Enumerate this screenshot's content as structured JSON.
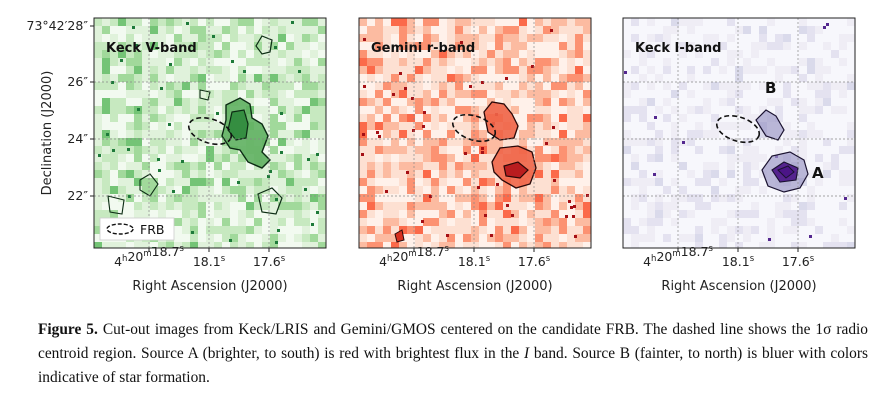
{
  "panels": [
    {
      "title": "Keck V-band",
      "colormap": "greens",
      "base_color": "#e6f4e3",
      "contour_fill": "#5fb061",
      "contour_fill_dark": "#2f8a3c",
      "show_frb_legend": true,
      "marker_labels": []
    },
    {
      "title": "Gemini r-band",
      "colormap": "reds",
      "base_color": "#fde6dd",
      "contour_fill": "#ef6548",
      "contour_fill_dark": "#b3141a",
      "show_frb_legend": false,
      "marker_labels": []
    },
    {
      "title": "Keck I-band",
      "colormap": "purples",
      "base_color": "#f4f4fa",
      "contour_fill": "#9e9ac8",
      "contour_fill_dark": "#4a1486",
      "show_frb_legend": false,
      "marker_labels": [
        "B",
        "A"
      ]
    }
  ],
  "axes": {
    "ylabel": "Declination (J2000)",
    "xlabel": "Right Ascension (J2000)",
    "y_ticks": [
      "73°42′28″",
      "26″",
      "24″",
      "22″"
    ],
    "x_ticks_ra": [
      "4h20m18.7s",
      "18.1s",
      "17.6s"
    ]
  },
  "legend": {
    "label": "FRB"
  },
  "caption": {
    "label": "Figure 5.",
    "text_part1": " Cut-out images from Keck/LRIS and Gemini/GMOS centered on the candidate FRB. The dashed line shows the 1σ radio centroid region. Source A (brighter, to south) is red with brightest flux in the ",
    "italic": "I",
    "text_part2": " band. Source B (fainter, to north) is bluer with colors indicative of star formation."
  }
}
